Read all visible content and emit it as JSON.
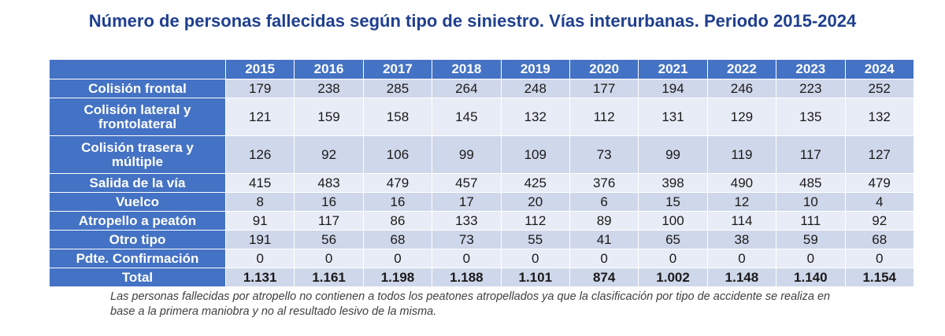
{
  "title": "Número de personas fallecidas según tipo de siniestro. Vías interurbanas. Periodo 2015-2024",
  "colors": {
    "header_bg": "#4472c4",
    "title": "#1f3f8f",
    "row_light": "#e8ecf6",
    "row_dark": "#cfd7ea"
  },
  "chart_data": {
    "type": "table",
    "title": "Número de personas fallecidas según tipo de siniestro. Vías interurbanas. Periodo 2015-2024",
    "columns": [
      "2015",
      "2016",
      "2017",
      "2018",
      "2019",
      "2020",
      "2021",
      "2022",
      "2023",
      "2024"
    ],
    "rows": [
      {
        "label": "Colisión frontal",
        "values": [
          "179",
          "238",
          "285",
          "264",
          "248",
          "177",
          "194",
          "246",
          "223",
          "252"
        ]
      },
      {
        "label": "Colisión lateral y frontolateral",
        "values": [
          "121",
          "159",
          "158",
          "145",
          "132",
          "112",
          "131",
          "129",
          "135",
          "132"
        ]
      },
      {
        "label": "Colisión trasera y múltiple",
        "values": [
          "126",
          "92",
          "106",
          "99",
          "109",
          "73",
          "99",
          "119",
          "117",
          "127"
        ]
      },
      {
        "label": "Salida de la vía",
        "values": [
          "415",
          "483",
          "479",
          "457",
          "425",
          "376",
          "398",
          "490",
          "485",
          "479"
        ]
      },
      {
        "label": "Vuelco",
        "values": [
          "8",
          "16",
          "16",
          "17",
          "20",
          "6",
          "15",
          "12",
          "10",
          "4"
        ]
      },
      {
        "label": "Atropello a peatón",
        "values": [
          "91",
          "117",
          "86",
          "133",
          "112",
          "89",
          "100",
          "114",
          "111",
          "92"
        ]
      },
      {
        "label": "Otro tipo",
        "values": [
          "191",
          "56",
          "68",
          "73",
          "55",
          "41",
          "65",
          "38",
          "59",
          "68"
        ]
      },
      {
        "label": "Pdte. Confirmación",
        "values": [
          "0",
          "0",
          "0",
          "0",
          "0",
          "0",
          "0",
          "0",
          "0",
          "0"
        ]
      },
      {
        "label": "Total",
        "values": [
          "1.131",
          "1.161",
          "1.198",
          "1.188",
          "1.101",
          "874",
          "1.002",
          "1.148",
          "1.140",
          "1.154"
        ]
      }
    ]
  },
  "note": "Las personas fallecidas por atropello no contienen a todos los peatones atropellados ya que la clasificación por tipo de accidente se realiza en base a la primera maniobra y no al resultado lesivo de la misma."
}
